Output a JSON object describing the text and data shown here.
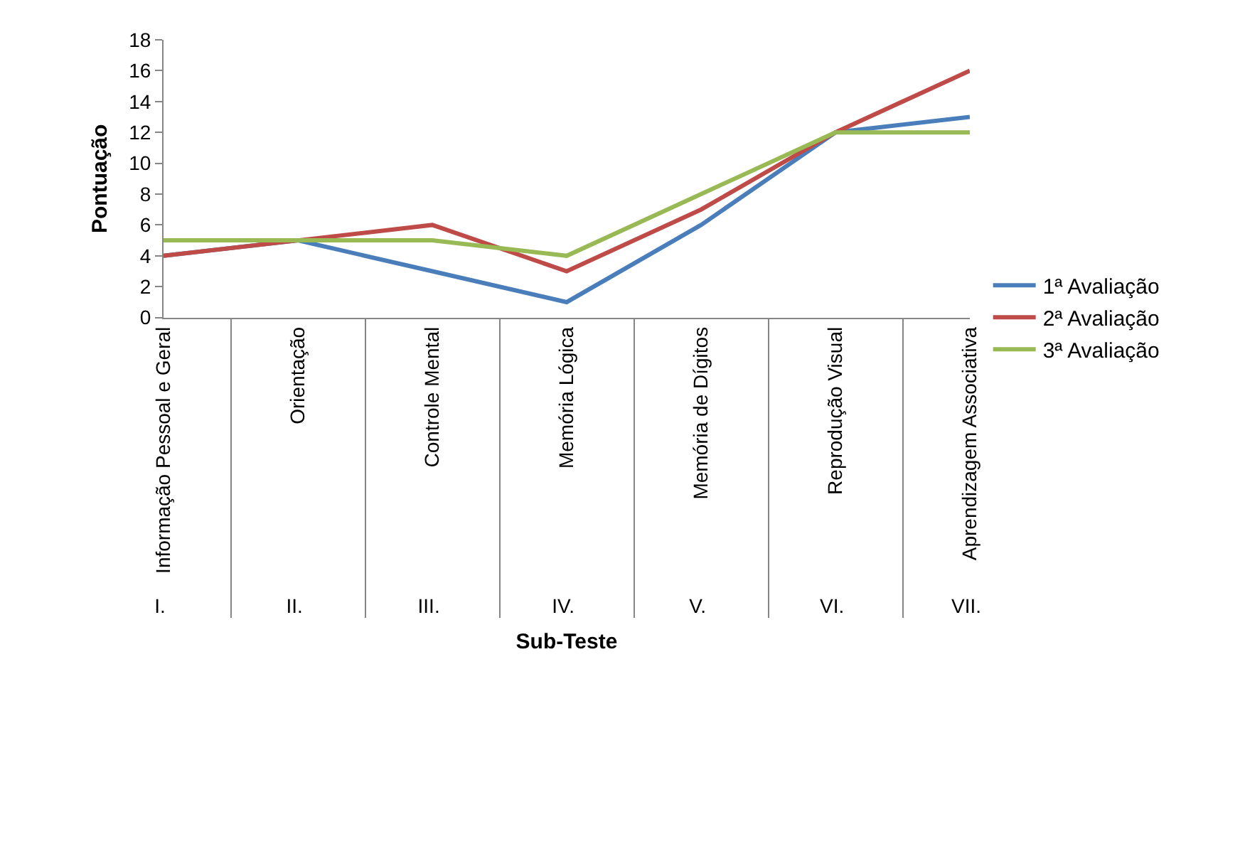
{
  "chart_data": {
    "type": "line",
    "xlabel": "Sub-Teste",
    "ylabel": "Pontuação",
    "categories": [
      "Informação Pessoal e Geral",
      "Orientação",
      "Controle Mental",
      "Memória Lógica",
      "Memória de Dígitos",
      "Reprodução Visual",
      "Aprendizagem Associativa"
    ],
    "annotations": [
      "I.",
      "II.",
      "III.",
      "IV.",
      "V.",
      "VI.",
      "VII."
    ],
    "series": [
      {
        "name": "1ª Avaliação",
        "color": "#4a7ebb",
        "values": [
          4,
          5,
          3,
          1,
          6,
          12,
          13
        ]
      },
      {
        "name": "2ª Avaliação",
        "color": "#be4b48",
        "values": [
          4,
          5,
          6,
          3,
          7,
          12,
          16
        ]
      },
      {
        "name": "3ª Avaliação",
        "color": "#98b954",
        "values": [
          5,
          5,
          5,
          4,
          8,
          12,
          12
        ]
      }
    ],
    "ylim": [
      0,
      18
    ],
    "yticks": [
      0,
      2,
      4,
      6,
      8,
      10,
      12,
      14,
      16,
      18
    ],
    "grid": false,
    "legend": "right",
    "marker": "none",
    "line_style": "solid"
  }
}
